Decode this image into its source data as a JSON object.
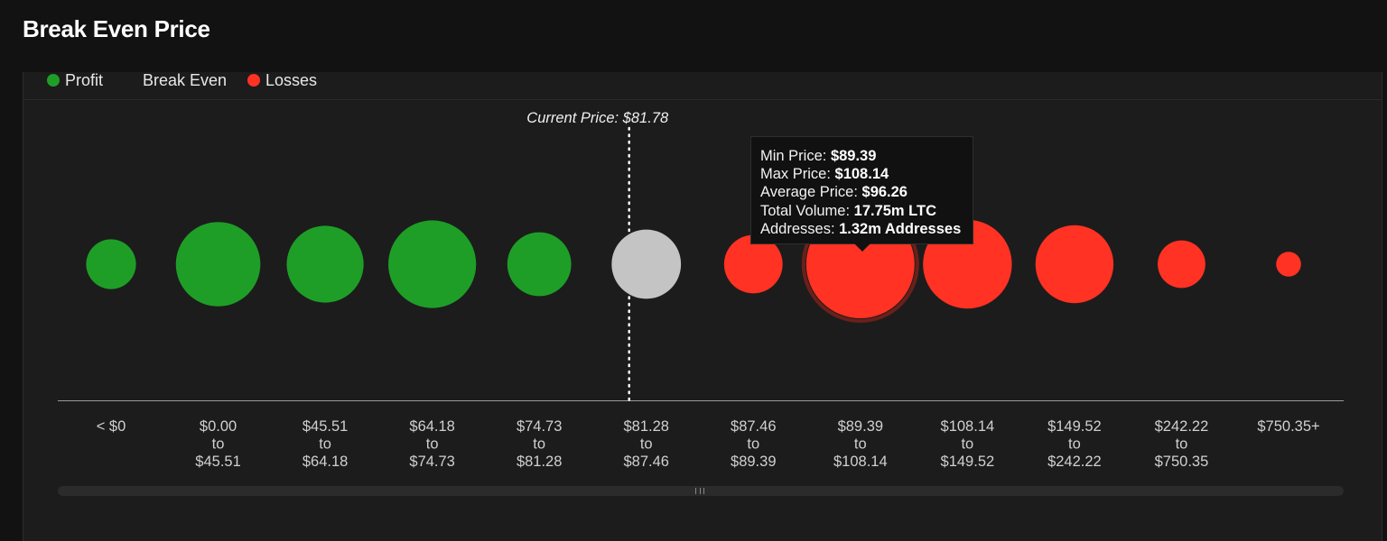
{
  "title": "Break Even Price",
  "legend": [
    {
      "label": "Profit",
      "color": "#1e9e27"
    },
    {
      "label": "Break Even",
      "color": null
    },
    {
      "label": "Losses",
      "color": "#ff3223"
    }
  ],
  "colors": {
    "profit": "#1e9e27",
    "breakeven": "#c4c4c4",
    "losses": "#ff3223",
    "highlight_ring": "#6b201a"
  },
  "chart_data": {
    "type": "bubble",
    "categories": [
      [
        "< $0"
      ],
      [
        "$0.00",
        "to",
        "$45.51"
      ],
      [
        "$45.51",
        "to",
        "$64.18"
      ],
      [
        "$64.18",
        "to",
        "$74.73"
      ],
      [
        "$74.73",
        "to",
        "$81.28"
      ],
      [
        "$81.28",
        "to",
        "$87.46"
      ],
      [
        "$87.46",
        "to",
        "$89.39"
      ],
      [
        "$89.39",
        "to",
        "$108.14"
      ],
      [
        "$108.14",
        "to",
        "$149.52"
      ],
      [
        "$149.52",
        "to",
        "$242.22"
      ],
      [
        "$242.22",
        "to",
        "$750.35"
      ],
      [
        "$750.35+"
      ]
    ],
    "status": [
      "profit",
      "profit",
      "profit",
      "profit",
      "profit",
      "breakeven",
      "losses",
      "losses",
      "losses",
      "losses",
      "losses",
      "losses"
    ],
    "relative_size": [
      0.46,
      0.78,
      0.71,
      0.81,
      0.59,
      0.64,
      0.54,
      1.0,
      0.82,
      0.72,
      0.44,
      0.23
    ],
    "current_price": {
      "label": "Current Price: $81.78",
      "value": 81.78
    },
    "highlighted_index": 7
  },
  "tooltip": {
    "rows": [
      {
        "label": "Min Price: ",
        "value": "$89.39"
      },
      {
        "label": "Max Price: ",
        "value": "$108.14"
      },
      {
        "label": "Average Price: ",
        "value": "$96.26"
      },
      {
        "label": "Total Volume: ",
        "value": "17.75m LTC"
      },
      {
        "label": "Addresses: ",
        "value": "1.32m Addresses"
      }
    ]
  }
}
